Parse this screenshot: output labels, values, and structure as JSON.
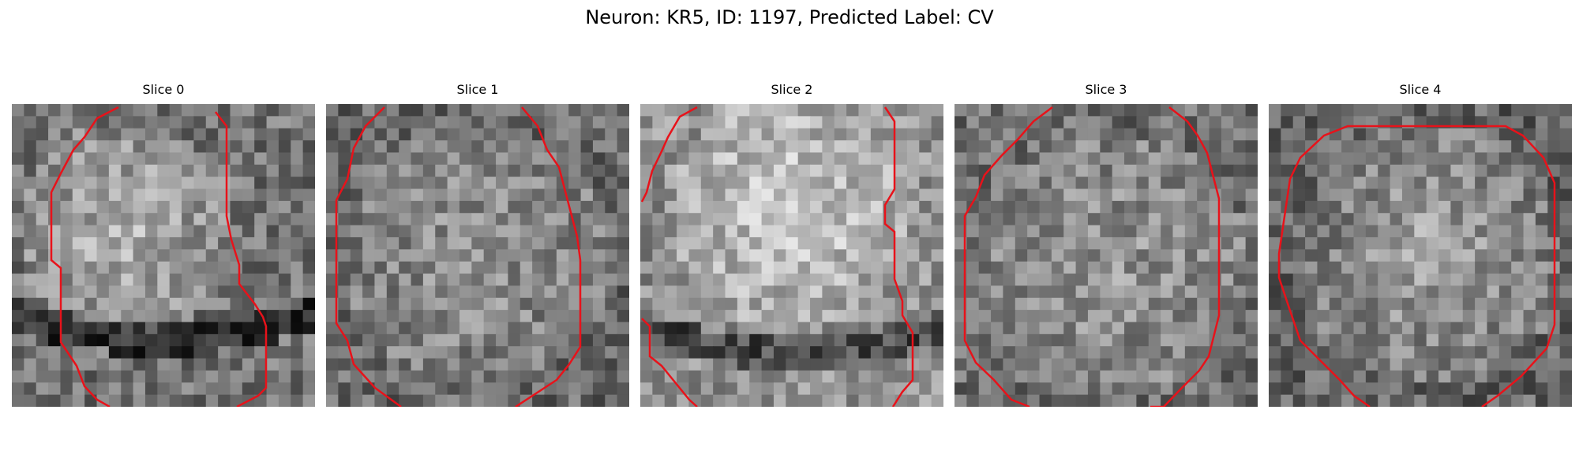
{
  "figure_title": "Neuron: KR5, ID: 1197, Predicted Label: CV",
  "contour_color": "#e8121a",
  "colormap": "gray",
  "panels": [
    {
      "title": "Slice 0"
    },
    {
      "title": "Slice 1"
    },
    {
      "title": "Slice 2"
    },
    {
      "title": "Slice 3"
    },
    {
      "title": "Slice 4"
    }
  ]
}
